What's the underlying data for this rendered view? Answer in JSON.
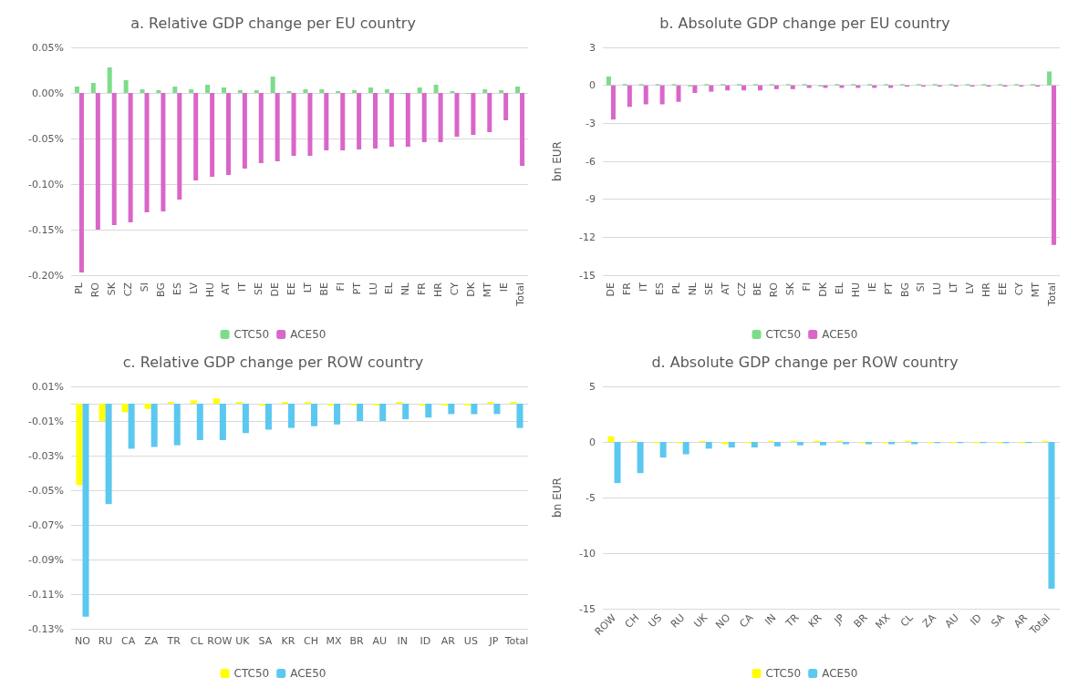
{
  "chart_data": [
    {
      "type": "bar",
      "title": "a. Relative GDP change per EU country",
      "categories": [
        "PL",
        "RO",
        "SK",
        "CZ",
        "SI",
        "BG",
        "ES",
        "LV",
        "HU",
        "AT",
        "IT",
        "SE",
        "DE",
        "EE",
        "LT",
        "BE",
        "FI",
        "PT",
        "LU",
        "EL",
        "NL",
        "FR",
        "HR",
        "CY",
        "DK",
        "MT",
        "IE",
        "Total"
      ],
      "series": [
        {
          "name": "CTC50",
          "color": "#7ddc8a",
          "values": [
            0.007,
            0.011,
            0.028,
            0.014,
            0.004,
            0.003,
            0.007,
            0.004,
            0.009,
            0.006,
            0.003,
            0.003,
            0.018,
            0.002,
            0.004,
            0.004,
            0.002,
            0.003,
            0.006,
            0.004,
            -0.001,
            0.006,
            0.009,
            0.002,
            -0.001,
            0.004,
            0.003,
            0.007
          ]
        },
        {
          "name": "ACE50",
          "color": "#d966c8",
          "values": [
            -0.197,
            -0.15,
            -0.145,
            -0.142,
            -0.131,
            -0.13,
            -0.117,
            -0.096,
            -0.092,
            -0.09,
            -0.083,
            -0.077,
            -0.075,
            -0.069,
            -0.069,
            -0.063,
            -0.063,
            -0.062,
            -0.061,
            -0.059,
            -0.059,
            -0.054,
            -0.054,
            -0.048,
            -0.046,
            -0.043,
            -0.03,
            -0.08
          ]
        }
      ],
      "ylim": [
        -0.2,
        0.05
      ],
      "yticks": [
        {
          "value": 0.05,
          "label": "0.05%"
        },
        {
          "value": 0,
          "label": "0.00%"
        },
        {
          "value": -0.05,
          "label": "-0.05%"
        },
        {
          "value": -0.1,
          "label": "-0.10%"
        },
        {
          "value": -0.15,
          "label": "-0.15%"
        },
        {
          "value": -0.2,
          "label": "-0.20%"
        }
      ],
      "grid": "y",
      "legend": "bottom"
    },
    {
      "type": "bar",
      "title": "b. Absolute GDP change per EU country",
      "ylabel": "bn EUR",
      "categories": [
        "DE",
        "FR",
        "IT",
        "ES",
        "PL",
        "NL",
        "SE",
        "AT",
        "CZ",
        "BE",
        "RO",
        "SK",
        "FI",
        "DK",
        "EL",
        "HU",
        "IE",
        "PT",
        "BG",
        "SI",
        "LU",
        "LT",
        "LV",
        "HR",
        "EE",
        "CY",
        "MT",
        "Total"
      ],
      "series": [
        {
          "name": "CTC50",
          "color": "#7ddc8a",
          "values": [
            0.7,
            0.1,
            0.1,
            0.1,
            0.1,
            -0.1,
            0.1,
            0.1,
            0.1,
            0.1,
            0.1,
            0.1,
            0.1,
            -0.1,
            0.1,
            0.1,
            0.1,
            0.1,
            0.1,
            0.1,
            0.1,
            0.1,
            0.1,
            0.1,
            0.1,
            0.1,
            0.1,
            1.1
          ]
        },
        {
          "name": "ACE50",
          "color": "#d966c8",
          "values": [
            -2.7,
            -1.7,
            -1.5,
            -1.5,
            -1.3,
            -0.6,
            -0.5,
            -0.4,
            -0.4,
            -0.4,
            -0.3,
            -0.3,
            -0.2,
            -0.2,
            -0.2,
            -0.2,
            -0.2,
            -0.2,
            -0.1,
            -0.1,
            -0.1,
            -0.1,
            -0.1,
            -0.1,
            -0.1,
            -0.1,
            -0.1,
            -12.6
          ]
        }
      ],
      "ylim": [
        -15,
        3
      ],
      "yticks": [
        3,
        0,
        -3,
        -6,
        -9,
        -12,
        -15
      ],
      "grid": "y",
      "legend": "bottom"
    },
    {
      "type": "bar",
      "title": "c. Relative GDP change per ROW country",
      "categories": [
        "NO",
        "RU",
        "CA",
        "ZA",
        "TR",
        "CL",
        "ROW",
        "UK",
        "SA",
        "KR",
        "CH",
        "MX",
        "BR",
        "AU",
        "IN",
        "ID",
        "AR",
        "US",
        "JP",
        "Total"
      ],
      "series": [
        {
          "name": "CTC50",
          "color": "#ffff00",
          "values": [
            -0.047,
            -0.01,
            -0.005,
            -0.003,
            0.001,
            0.002,
            0.003,
            0.001,
            -0.001,
            0.001,
            0.001,
            -0.001,
            -0.001,
            -0.001,
            0.001,
            -0.001,
            -0.001,
            -0.001,
            0.001,
            0.001
          ]
        },
        {
          "name": "ACE50",
          "color": "#5bc8f0",
          "values": [
            -0.123,
            -0.058,
            -0.026,
            -0.025,
            -0.024,
            -0.021,
            -0.021,
            -0.017,
            -0.015,
            -0.014,
            -0.013,
            -0.012,
            -0.01,
            -0.01,
            -0.009,
            -0.008,
            -0.006,
            -0.006,
            -0.006,
            -0.014
          ]
        }
      ],
      "ylim": [
        -0.13,
        0.01
      ],
      "yticks": [
        {
          "value": 0.01,
          "label": "0.01%"
        },
        {
          "value": -0.01,
          "label": "-0.01%"
        },
        {
          "value": -0.03,
          "label": "-0.03%"
        },
        {
          "value": -0.05,
          "label": "-0.05%"
        },
        {
          "value": -0.07,
          "label": "-0.07%"
        },
        {
          "value": -0.09,
          "label": "-0.09%"
        },
        {
          "value": -0.11,
          "label": "-0.11%"
        },
        {
          "value": -0.13,
          "label": "-0.13%"
        }
      ],
      "grid": "y",
      "legend": "bottom"
    },
    {
      "type": "bar",
      "title": "d. Absolute GDP change per ROW country",
      "ylabel": "bn EUR",
      "categories": [
        "ROW",
        "CH",
        "US",
        "RU",
        "UK",
        "NO",
        "CA",
        "IN",
        "TR",
        "KR",
        "JP",
        "BR",
        "MX",
        "CL",
        "ZA",
        "AU",
        "ID",
        "SA",
        "AR",
        "Total"
      ],
      "series": [
        {
          "name": "CTC50",
          "color": "#ffff00",
          "values": [
            0.5,
            0.1,
            -0.1,
            -0.1,
            0.1,
            -0.2,
            -0.1,
            0.1,
            0.1,
            0.1,
            0.1,
            -0.1,
            -0.1,
            0.1,
            -0.1,
            -0.1,
            -0.1,
            -0.1,
            -0.1,
            0.1
          ]
        },
        {
          "name": "ACE50",
          "color": "#5bc8f0",
          "values": [
            -3.7,
            -2.8,
            -1.4,
            -1.1,
            -0.6,
            -0.5,
            -0.5,
            -0.4,
            -0.3,
            -0.3,
            -0.2,
            -0.2,
            -0.2,
            -0.2,
            -0.1,
            -0.1,
            -0.1,
            -0.1,
            -0.1,
            -13.2
          ]
        }
      ],
      "ylim": [
        -15,
        5
      ],
      "yticks": [
        5,
        0,
        -5,
        -10,
        -15
      ],
      "grid": "y",
      "legend": "bottom"
    }
  ]
}
